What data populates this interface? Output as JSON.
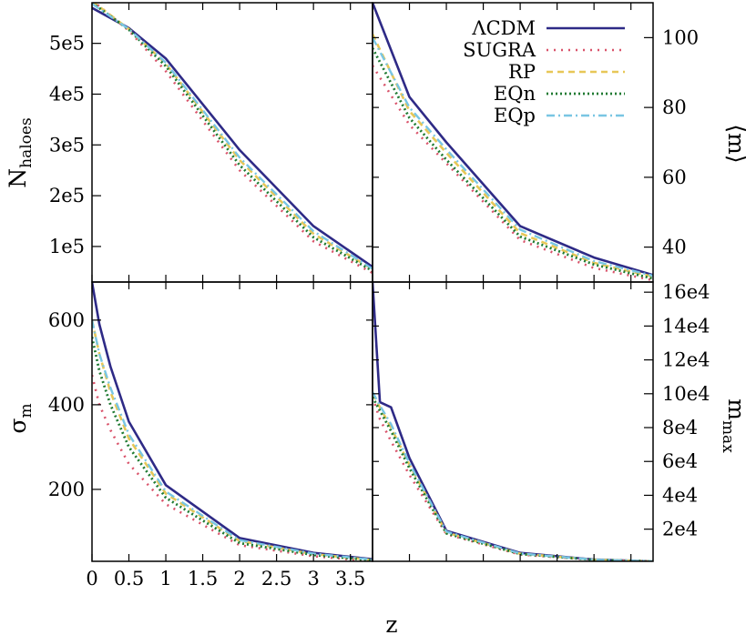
{
  "colors": {
    "ΛCDM": "#2e2a86",
    "SUGRA": "#d9546b",
    "RP": "#e7c757",
    "EQn": "#1f7a32",
    "EQp": "#79c6e3"
  },
  "chart_data": [
    {
      "id": "nhaloes",
      "type": "line",
      "ylabel": "N",
      "ylabel_sub": "haloes",
      "xlim": [
        0,
        3.8
      ],
      "ylim": [
        30000,
        580000
      ],
      "xticks": [],
      "yticks": [
        100000,
        200000,
        300000,
        400000,
        500000
      ],
      "ytick_labels": [
        "1e5",
        "2e5",
        "3e5",
        "4e5",
        "5e5"
      ],
      "x": [
        0,
        0.5,
        1,
        2,
        3,
        3.8
      ],
      "series": [
        {
          "name": "ΛCDM",
          "values": [
            570000,
            530000,
            470000,
            290000,
            140000,
            60000
          ]
        },
        {
          "name": "SUGRA",
          "values": [
            585000,
            525000,
            445000,
            250000,
            110000,
            48000
          ]
        },
        {
          "name": "RP",
          "values": [
            583000,
            528000,
            460000,
            270000,
            125000,
            55000
          ]
        },
        {
          "name": "EQn",
          "values": [
            580000,
            527000,
            455000,
            260000,
            118000,
            52000
          ]
        },
        {
          "name": "EQp",
          "values": [
            578000,
            528000,
            462000,
            275000,
            130000,
            56000
          ]
        }
      ]
    },
    {
      "id": "mean_m",
      "type": "line",
      "ylabel": "⟨m⟩",
      "ylabel_sub": "",
      "xlim": [
        0,
        3.8
      ],
      "ylim": [
        30,
        110
      ],
      "xticks": [],
      "yticks": [
        40,
        60,
        80,
        100
      ],
      "ytick_labels": [
        "40",
        "60",
        "80",
        "100"
      ],
      "x": [
        0,
        0.5,
        1,
        2,
        3,
        3.8
      ],
      "series": [
        {
          "name": "ΛCDM",
          "values": [
            110,
            83,
            70,
            46,
            37,
            32
          ]
        },
        {
          "name": "SUGRA",
          "values": [
            92,
            75,
            64,
            42,
            34,
            30.5
          ]
        },
        {
          "name": "RP",
          "values": [
            101,
            79,
            67,
            44,
            35.5,
            31.5
          ]
        },
        {
          "name": "EQn",
          "values": [
            97,
            77,
            65,
            43,
            35,
            31
          ]
        },
        {
          "name": "EQp",
          "values": [
            100,
            80,
            68,
            45,
            36,
            31.8
          ]
        }
      ]
    },
    {
      "id": "sigma_m",
      "type": "line",
      "ylabel": "σ",
      "ylabel_sub": "m",
      "xlim": [
        0,
        3.8
      ],
      "ylim": [
        30,
        690
      ],
      "xticks": [
        0,
        0.5,
        1,
        1.5,
        2,
        2.5,
        3,
        3.5
      ],
      "xtick_labels": [
        "0",
        "0.5",
        "1",
        "1.5",
        "2",
        "2.5",
        "3",
        "3.5"
      ],
      "yticks": [
        200,
        400,
        600
      ],
      "ytick_labels": [
        "200",
        "400",
        "600"
      ],
      "x": [
        0,
        0.1,
        0.25,
        0.5,
        1,
        2,
        3,
        3.8
      ],
      "series": [
        {
          "name": "ΛCDM",
          "values": [
            690,
            590,
            490,
            360,
            210,
            85,
            50,
            35
          ]
        },
        {
          "name": "SUGRA",
          "values": [
            470,
            400,
            340,
            260,
            165,
            68,
            42,
            30
          ]
        },
        {
          "name": "RP",
          "values": [
            600,
            520,
            430,
            320,
            190,
            78,
            47,
            33
          ]
        },
        {
          "name": "EQn",
          "values": [
            560,
            480,
            400,
            300,
            180,
            73,
            45,
            32
          ]
        },
        {
          "name": "EQp",
          "values": [
            600,
            520,
            440,
            330,
            195,
            80,
            48,
            34
          ]
        }
      ]
    },
    {
      "id": "m_max",
      "type": "line",
      "ylabel": "m",
      "ylabel_sub": "max",
      "xlim": [
        0,
        3.8
      ],
      "ylim": [
        1000,
        166000
      ],
      "xticks": [],
      "yticks": [
        20000,
        40000,
        60000,
        80000,
        100000,
        120000,
        140000,
        160000
      ],
      "ytick_labels": [
        "2e4",
        "4e4",
        "6e4",
        "8e4",
        "10e4",
        "12e4",
        "14e4",
        "16e4"
      ],
      "x": [
        0,
        0.1,
        0.25,
        0.5,
        1,
        2,
        3,
        3.8
      ],
      "series": [
        {
          "name": "ΛCDM",
          "values": [
            166000,
            95000,
            92000,
            62000,
            19000,
            6000,
            2000,
            1000
          ]
        },
        {
          "name": "SUGRA",
          "values": [
            98000,
            85000,
            72000,
            52000,
            17000,
            5000,
            1800,
            900
          ]
        },
        {
          "name": "RP",
          "values": [
            100000,
            92000,
            80000,
            58000,
            18000,
            5500,
            1900,
            950
          ]
        },
        {
          "name": "EQn",
          "values": [
            98000,
            90000,
            78000,
            56000,
            17500,
            5300,
            1850,
            920
          ]
        },
        {
          "name": "EQp",
          "values": [
            101000,
            93000,
            82000,
            59000,
            18500,
            5600,
            1950,
            980
          ]
        }
      ]
    }
  ],
  "xlabel": "z",
  "legend": [
    {
      "label": "ΛCDM",
      "dash": "solid"
    },
    {
      "label": "SUGRA",
      "dash": "dotted"
    },
    {
      "label": "RP",
      "dash": "dashed"
    },
    {
      "label": "EQn",
      "dash": "finedot"
    },
    {
      "label": "EQp",
      "dash": "dashdot"
    }
  ]
}
